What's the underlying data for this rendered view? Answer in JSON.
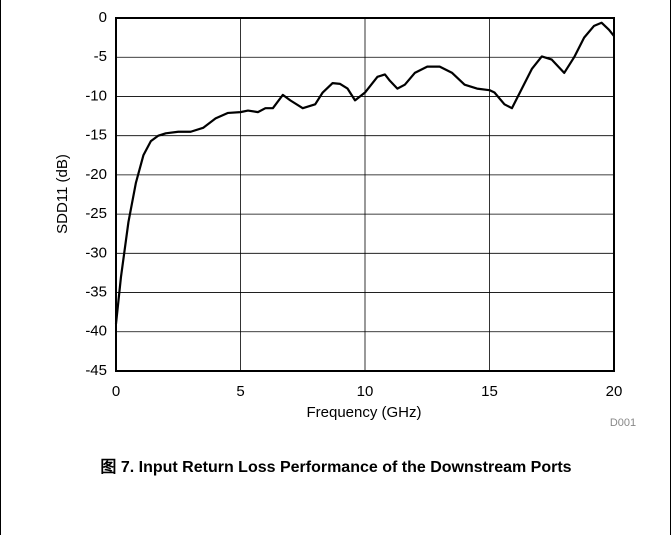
{
  "chart_data": {
    "type": "line",
    "xlabel": "Frequency (GHz)",
    "ylabel": "SDD11 (dB)",
    "x": [
      0,
      0.2,
      0.5,
      0.8,
      1.1,
      1.4,
      1.7,
      2,
      2.5,
      3,
      3.5,
      4,
      4.5,
      5,
      5.3,
      5.7,
      6,
      6.3,
      6.7,
      7,
      7.5,
      8,
      8.3,
      8.7,
      9,
      9.3,
      9.6,
      10,
      10.5,
      10.8,
      11,
      11.3,
      11.6,
      12,
      12.5,
      13,
      13.5,
      14,
      14.5,
      15,
      15.2,
      15.6,
      15.9,
      16.3,
      16.7,
      17.1,
      17.5,
      18,
      18.4,
      18.8,
      19.2,
      19.5,
      19.8,
      20
    ],
    "values": [
      -39,
      -33,
      -26,
      -21,
      -17.5,
      -15.7,
      -15,
      -14.7,
      -14.5,
      -14.5,
      -14,
      -12.8,
      -12.1,
      -12,
      -11.8,
      -12,
      -11.5,
      -11.5,
      -9.8,
      -10.5,
      -11.5,
      -11,
      -9.5,
      -8.3,
      -8.4,
      -9,
      -10.5,
      -9.5,
      -7.5,
      -7.2,
      -8,
      -9,
      -8.5,
      -7,
      -6.2,
      -6.2,
      -7,
      -8.5,
      -9,
      -9.2,
      -9.5,
      -11,
      -11.5,
      -9,
      -6.5,
      -4.9,
      -5.3,
      -7,
      -5,
      -2.5,
      -1,
      -0.6,
      -1.5,
      -2.3
    ],
    "color": "#000000",
    "xlim": [
      0,
      20
    ],
    "xticks": [
      0,
      5,
      10,
      15,
      20
    ],
    "ylim": [
      -45,
      0
    ],
    "yticks": [
      0,
      -5,
      -10,
      -15,
      -20,
      -25,
      -30,
      -35,
      -40,
      -45
    ],
    "grid": true,
    "note": "D001",
    "caption": "图 7. Input Return Loss Performance of the Downstream Ports"
  }
}
